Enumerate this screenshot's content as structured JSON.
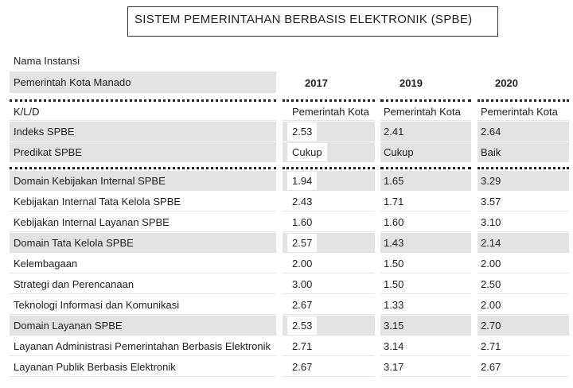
{
  "title": "SISTEM PEMERINTAHAN BERBASIS ELEKTRONIK (SPBE)",
  "instansi": {
    "label": "Nama Instansi",
    "value": "Pemerintah Kota Manado"
  },
  "years": [
    "2017",
    "2019",
    "2020"
  ],
  "header_rows": [
    {
      "label": "K/L/D",
      "values": [
        "Pemerintah Kota",
        "Pemerintah Kota",
        "Pemerintah Kota"
      ],
      "shaded": false
    },
    {
      "label": "Indeks SPBE",
      "values": [
        "2.53",
        "2.41",
        "2.64"
      ],
      "shaded": true
    },
    {
      "label": "Predikat SPBE",
      "values": [
        "Cukup",
        "Cukup",
        "Baik"
      ],
      "shaded": true
    }
  ],
  "rows": [
    {
      "label": "Domain Kebijakan Internal SPBE",
      "values": [
        "1.94",
        "1.65",
        "3.29"
      ],
      "shaded": true
    },
    {
      "label": "Kebijakan Internal Tata Kelola SPBE",
      "values": [
        "2.43",
        "1.71",
        "3.57"
      ],
      "shaded": false
    },
    {
      "label": "Kebijakan Internal Layanan SPBE",
      "values": [
        "1.60",
        "1.60",
        "3.10"
      ],
      "shaded": false
    },
    {
      "label": "Domain Tata Kelola SPBE",
      "values": [
        "2.57",
        "1.43",
        "2.14"
      ],
      "shaded": true
    },
    {
      "label": "Kelembagaan",
      "values": [
        "2.00",
        "1.50",
        "2.00"
      ],
      "shaded": false
    },
    {
      "label": "Strategi dan Perencanaan",
      "values": [
        "3.00",
        "1.50",
        "2.50"
      ],
      "shaded": false
    },
    {
      "label": "Teknologi Informasi dan Komunikasi",
      "values": [
        "2.67",
        "1.33",
        "2.00"
      ],
      "shaded": false
    },
    {
      "label": "Domain Layanan SPBE",
      "values": [
        "2.53",
        "3.15",
        "2.70"
      ],
      "shaded": true
    },
    {
      "label": "Layanan Administrasi Pemerintahan Berbasis Elektronik",
      "values": [
        "2.71",
        "3.14",
        "2.71"
      ],
      "shaded": false
    },
    {
      "label": "Layanan Publik Berbasis Elektronik",
      "values": [
        "2.67",
        "3.17",
        "2.67"
      ],
      "shaded": false
    }
  ]
}
